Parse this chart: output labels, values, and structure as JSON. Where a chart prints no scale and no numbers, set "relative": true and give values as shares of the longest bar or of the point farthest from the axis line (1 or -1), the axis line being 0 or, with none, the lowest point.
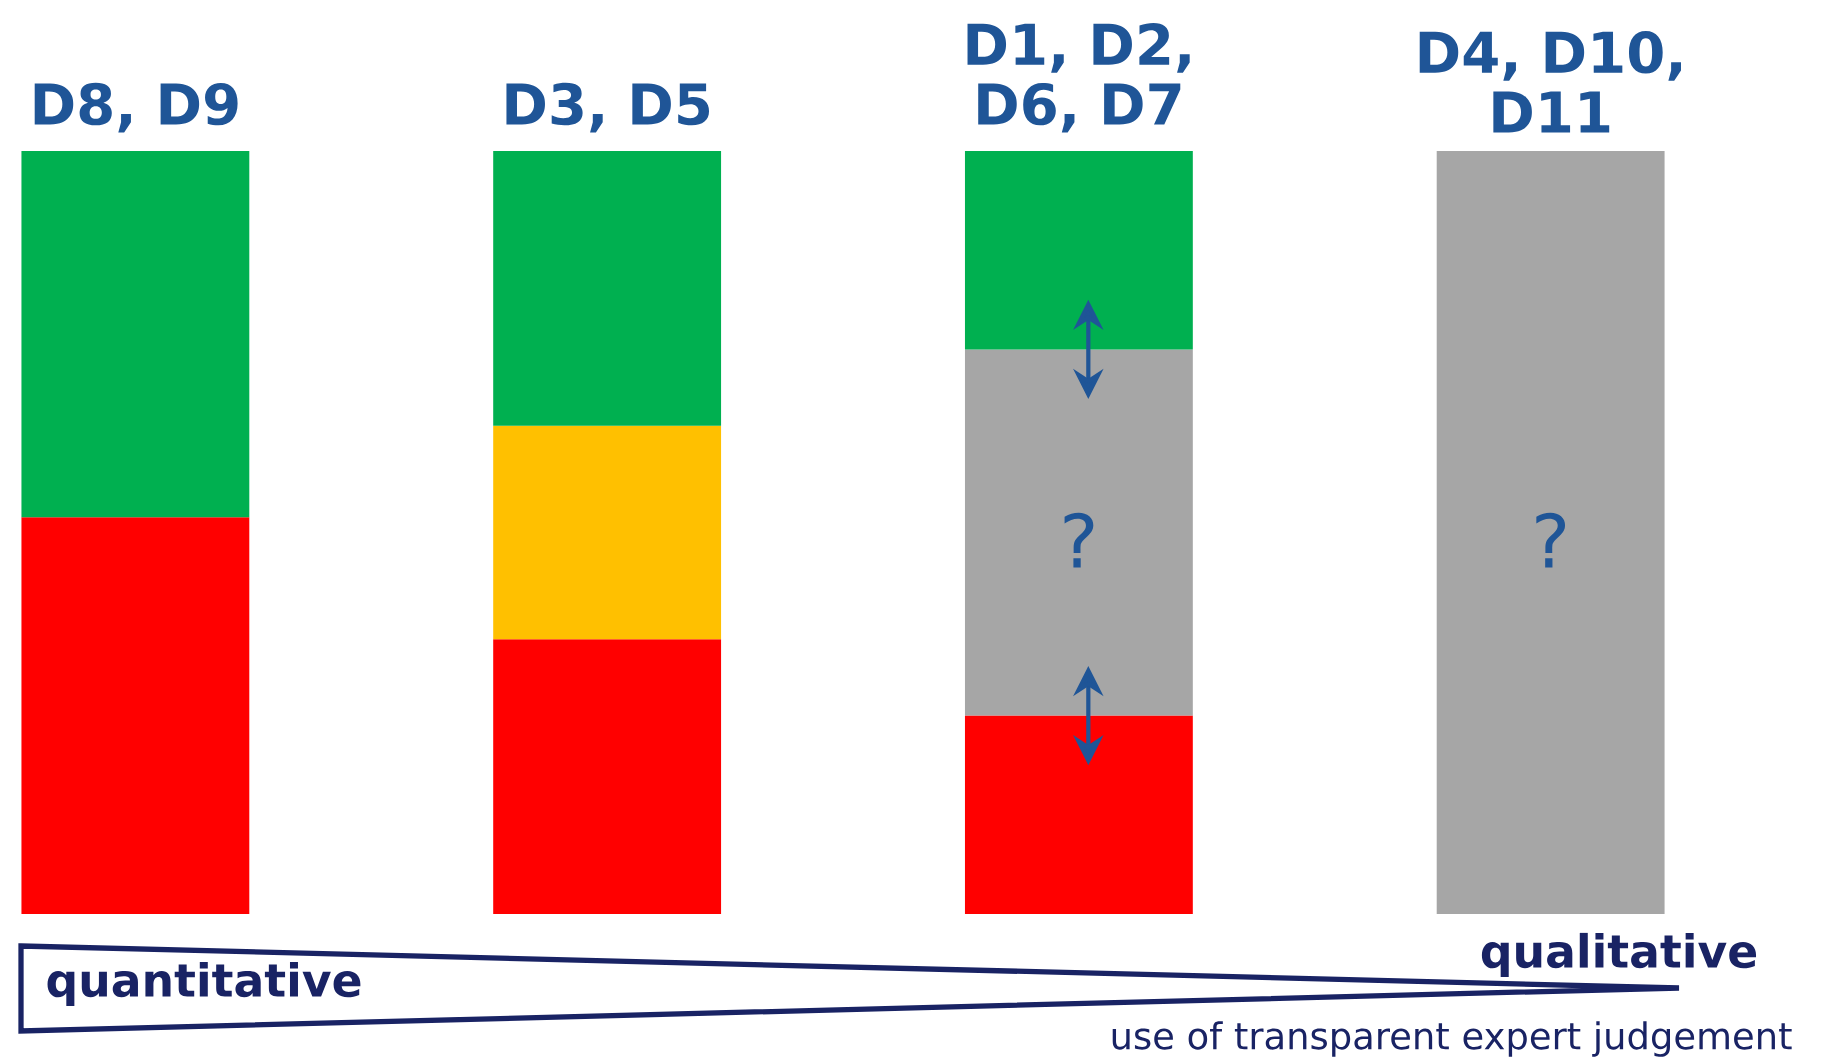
{
  "chart_data": {
    "type": "bar",
    "stacked": true,
    "relative": true,
    "categories": [
      "D8, D9",
      "D3, D5",
      "D1, D2, D6, D7",
      "D4, D10, D11"
    ],
    "series": [
      {
        "color": "#ff0000",
        "values": [
          0.52,
          0.36,
          0.26,
          null
        ]
      },
      {
        "color": "#ffc000",
        "values": [
          null,
          0.28,
          null,
          null
        ]
      },
      {
        "color": "#a6a6a6",
        "values": [
          null,
          null,
          0.48,
          1
        ]
      },
      {
        "color": "#00b050",
        "values": [
          0.48,
          0.36,
          0.26,
          null
        ]
      }
    ],
    "annotations": [
      "?",
      "?",
      "quantitative",
      "qualitative",
      "use of transparent expert judgement"
    ]
  }
}
